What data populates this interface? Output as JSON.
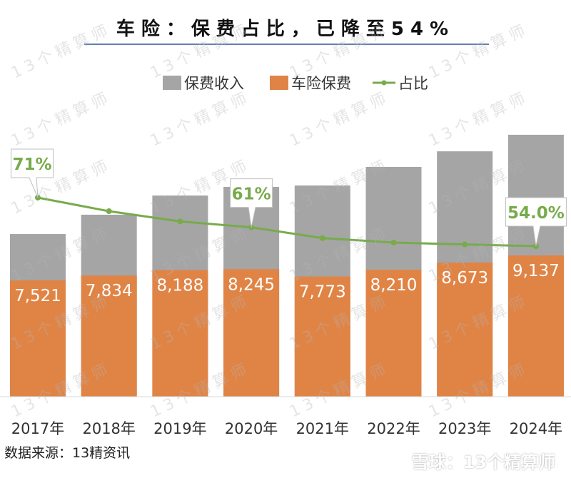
{
  "title": "车险：保费占比，已降至54%",
  "source": "数据来源：13精资讯",
  "watermark": "13个精算师",
  "platform_watermark": "雪球：13个精算师",
  "colors": {
    "total": "#a5a5a5",
    "auto": "#e08446",
    "ratio": "#77ab4b",
    "title_rule": "#2f5597"
  },
  "chart_data": {
    "type": "bar",
    "stacked": true,
    "categories": [
      "2017年",
      "2018年",
      "2019年",
      "2020年",
      "2021年",
      "2022年",
      "2023年",
      "2024年"
    ],
    "legend": {
      "position": "top",
      "entries": [
        "保费收入",
        "车险保费",
        "占比"
      ]
    },
    "series": [
      {
        "name": "保费收入",
        "type": "bar",
        "values": [
          10520,
          11770,
          13010,
          13570,
          13660,
          14860,
          15870,
          16940
        ]
      },
      {
        "name": "车险保费",
        "type": "bar",
        "values": [
          7521,
          7834,
          8188,
          8245,
          7773,
          8210,
          8673,
          9137
        ],
        "labels": [
          "7,521",
          "7,834",
          "8,188",
          "8,245",
          "7,773",
          "8,210",
          "8,673",
          "9,137"
        ]
      },
      {
        "name": "占比",
        "type": "line",
        "values": [
          71.5,
          66.6,
          62.9,
          60.8,
          56.9,
          55.3,
          54.6,
          54.0
        ],
        "unit": "%",
        "callouts": [
          {
            "index": 0,
            "text": "71%"
          },
          {
            "index": 3,
            "text": "61%"
          },
          {
            "index": 7,
            "text": "54.0%"
          }
        ]
      }
    ],
    "grid": false
  }
}
